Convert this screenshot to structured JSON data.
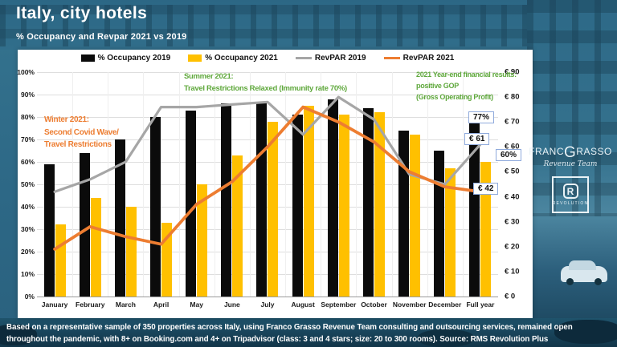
{
  "header": {
    "title": "Italy, city hotels",
    "subtitle": "% Occupancy and Revpar 2021 vs 2019"
  },
  "legend": [
    {
      "label": "% Occupancy 2019",
      "marker": "bar",
      "color": "#0b0b0b"
    },
    {
      "label": "% Occupancy 2021",
      "marker": "bar",
      "color": "#FFC000"
    },
    {
      "label": "RevPAR 2019",
      "marker": "line",
      "color": "#A6A6A6"
    },
    {
      "label": "RevPAR 2021",
      "marker": "line",
      "color": "#ED7D31"
    }
  ],
  "chart_data": {
    "type": "combo-bar-line",
    "categories": [
      "January",
      "February",
      "March",
      "April",
      "May",
      "June",
      "July",
      "August",
      "September",
      "October",
      "November",
      "December",
      "Full year"
    ],
    "series": [
      {
        "name": "% Occupancy 2019",
        "type": "bar",
        "axis": "left_percent",
        "color": "#0b0b0b",
        "values": [
          59,
          64,
          70,
          80,
          83,
          86,
          86,
          81,
          88,
          84,
          74,
          65,
          77
        ]
      },
      {
        "name": "% Occupancy 2021",
        "type": "bar",
        "axis": "left_percent",
        "color": "#FFC000",
        "values": [
          32,
          44,
          40,
          33,
          50,
          63,
          78,
          85,
          81,
          82,
          72,
          57,
          60
        ]
      },
      {
        "name": "RevPAR 2019",
        "type": "line",
        "axis": "right_euro",
        "color": "#A6A6A6",
        "values": [
          42,
          47,
          54,
          76,
          76,
          77,
          78,
          65,
          80,
          71,
          49,
          45,
          61
        ]
      },
      {
        "name": "RevPAR 2021",
        "type": "line",
        "axis": "right_euro",
        "color": "#ED7D31",
        "values": [
          19,
          28,
          24,
          21,
          37,
          46,
          60,
          76,
          70,
          62,
          50,
          44,
          42
        ]
      }
    ],
    "left_axis": {
      "min": 0,
      "max": 100,
      "ticks": [
        "0%",
        "10%",
        "20%",
        "30%",
        "40%",
        "50%",
        "60%",
        "70%",
        "80%",
        "90%",
        "100%"
      ]
    },
    "right_axis": {
      "min": 0,
      "max": 90,
      "ticks": [
        "€ 0",
        "€ 10",
        "€ 20",
        "€ 30",
        "€ 40",
        "€ 50",
        "€ 60",
        "€ 70",
        "€ 80",
        "€ 90"
      ]
    },
    "grid": true,
    "legend_position": "top"
  },
  "annotations": {
    "winter": "Winter 2021:\nSecond Covid Wave/\nTravel Restrictions",
    "summer": "Summer 2021:\nTravel Restrictions Relaxed (Immunity rate 70%)",
    "yearend": "2021 Year-end financial results:\npositive GOP\n(Gross Operating Profit)"
  },
  "callouts": {
    "occ_2019": "77%",
    "revpar_2019": "€ 61",
    "occ_2021": "60%",
    "revpar_2021": "€ 42"
  },
  "footer": {
    "line1": "Based on a representative sample of 350 properties across Italy, using Franco Grasso Revenue Team consulting and outsourcing services, remained open",
    "line2": "throughout the pandemic, with 8+ on Booking.com and 4+ on Tripadvisor (class: 3 and 4 stars; size: 20 to 300 rooms). Source: RMS Revolution Plus"
  },
  "logo": {
    "brand_left": "FRANC",
    "brand_g": "G",
    "brand_right": "RASSO",
    "script": "Revenue Team",
    "mark_letter": "R",
    "mark_label": "REVOLUTION"
  }
}
